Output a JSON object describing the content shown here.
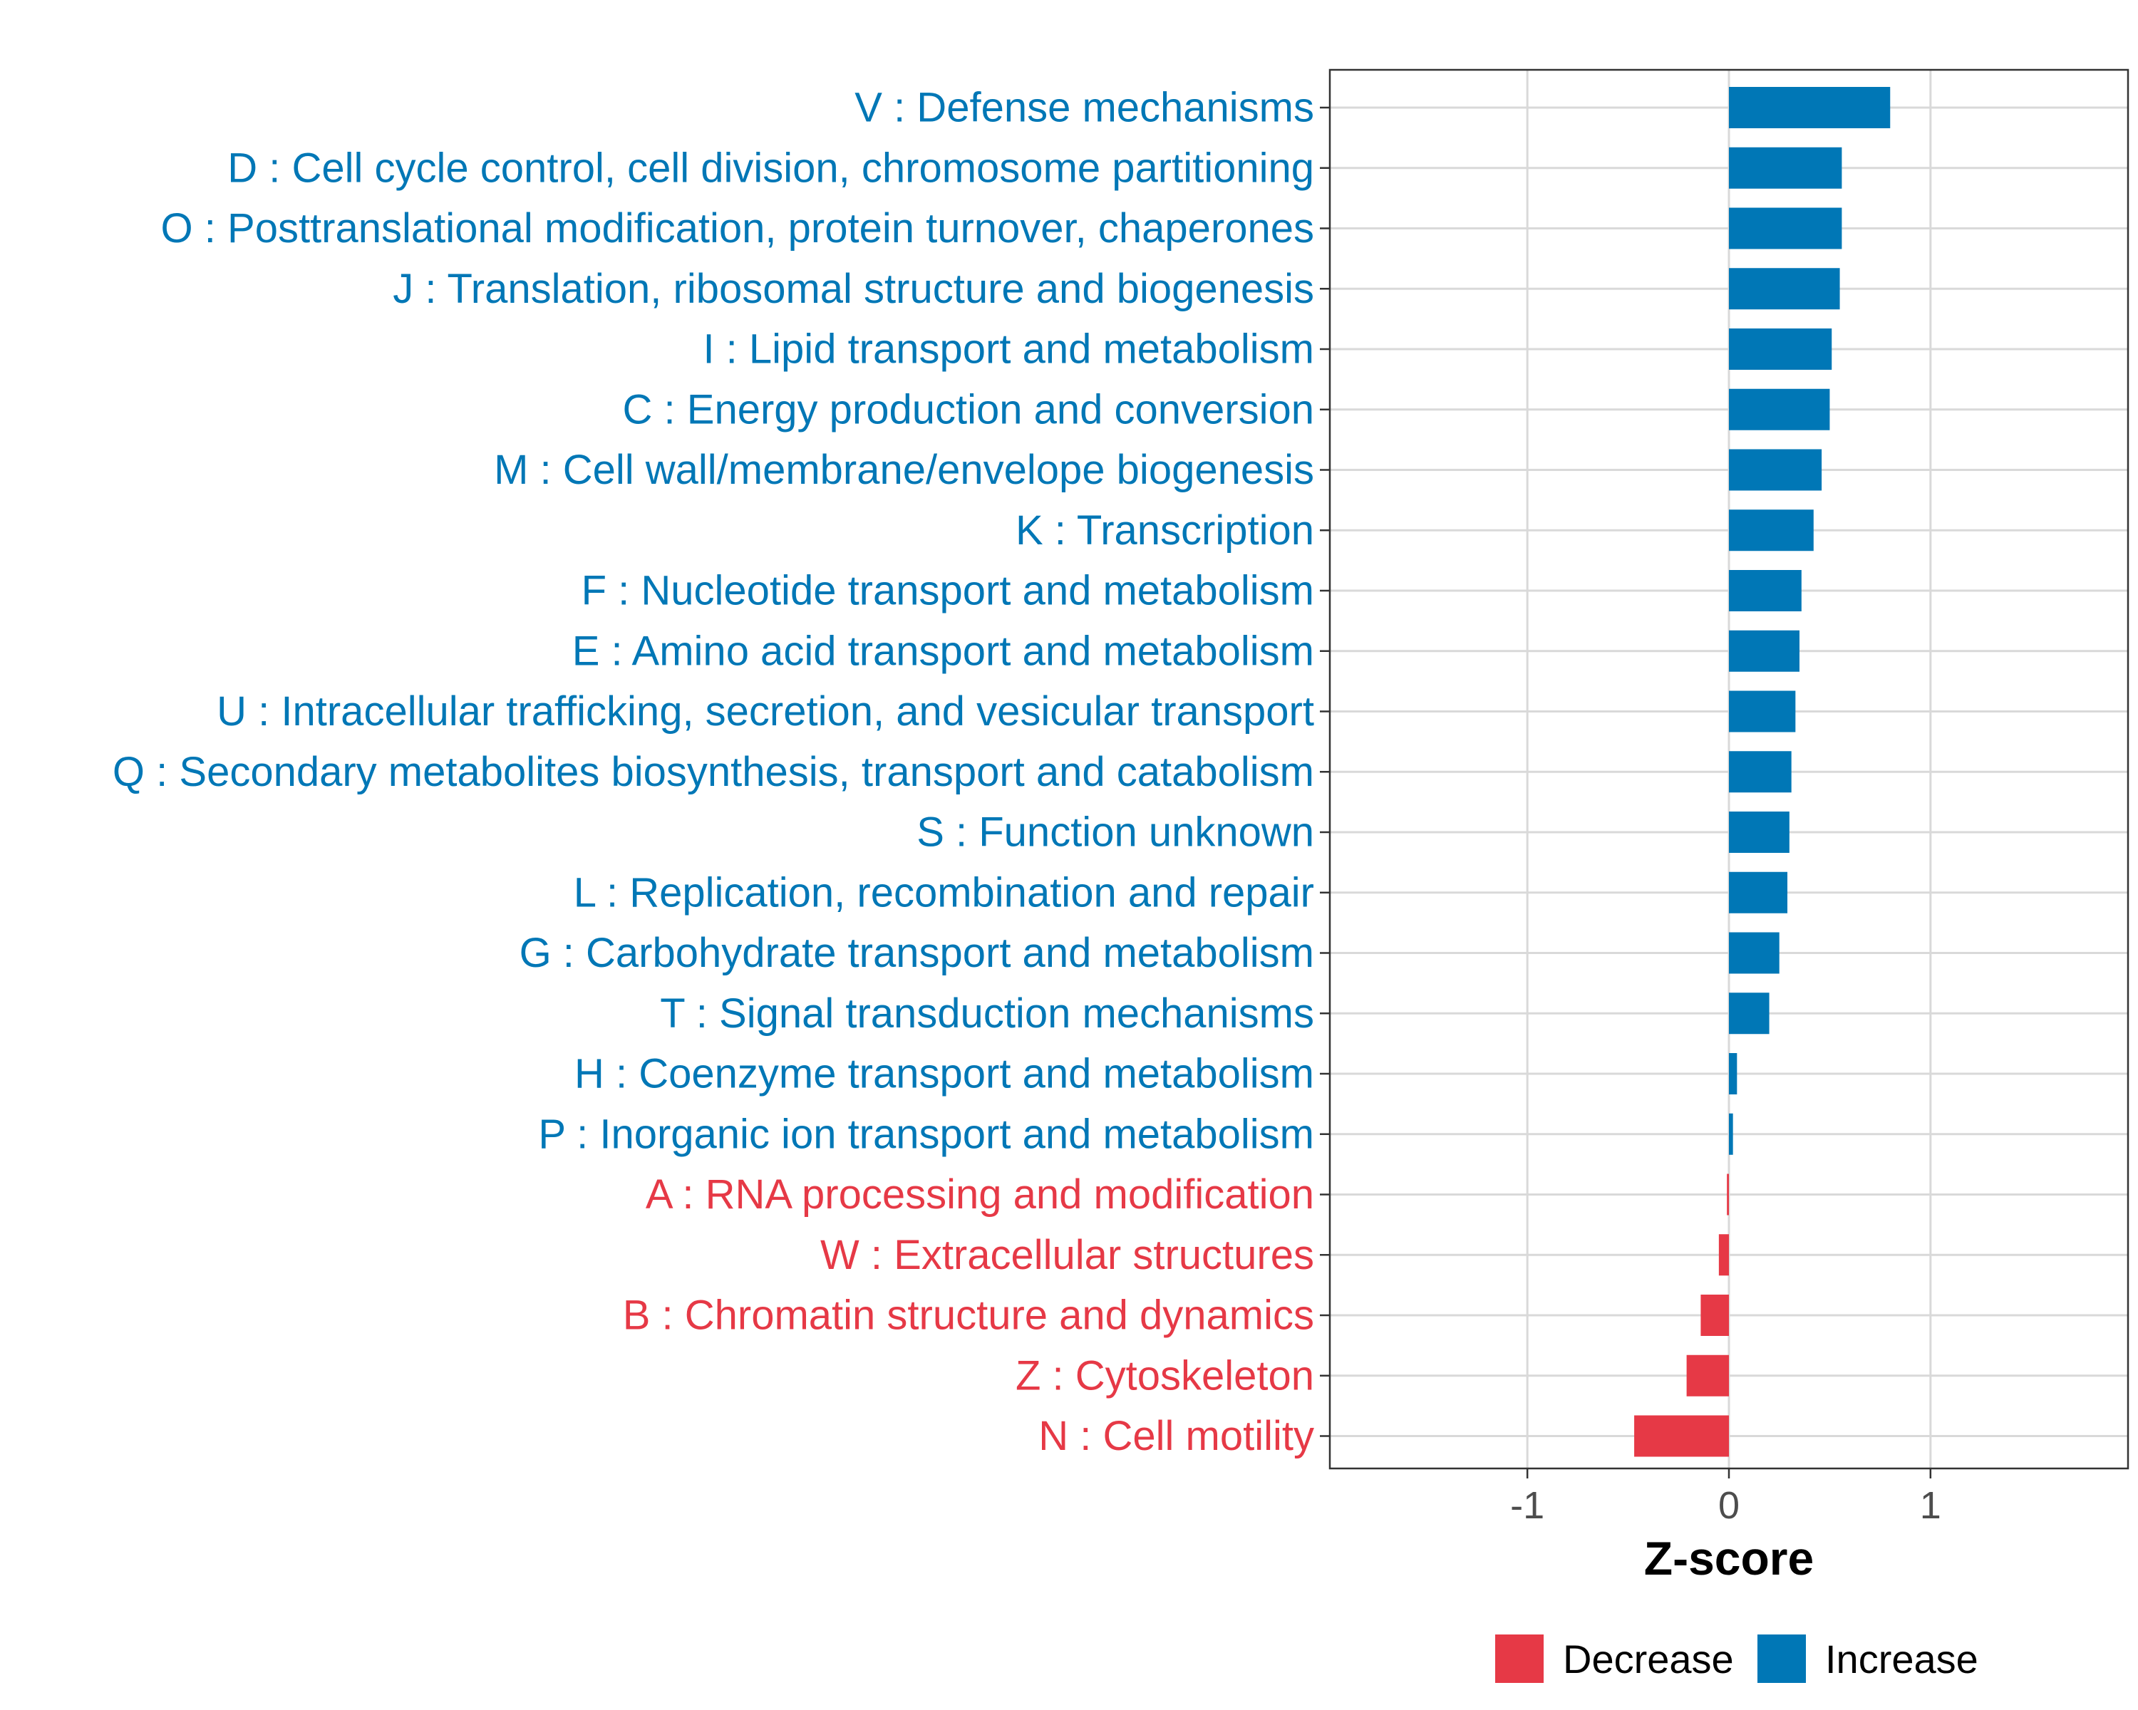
{
  "chart_data": {
    "type": "bar",
    "orientation": "horizontal",
    "title": "",
    "xlabel": "Z-score",
    "ylabel": "",
    "xlim": [
      -1.98,
      1.98
    ],
    "xticks": [
      -1,
      0,
      1
    ],
    "xtick_labels": [
      "-1",
      "0",
      "1"
    ],
    "grid": true,
    "legend_position": "bottom",
    "colors": {
      "Decrease": "#E63946",
      "Increase": "#0077B6"
    },
    "legend": [
      {
        "label": "Decrease",
        "color": "#E63946"
      },
      {
        "label": "Increase",
        "color": "#0077B6"
      }
    ],
    "categories": [
      "V : Defense mechanisms",
      "D : Cell cycle control, cell division, chromosome partitioning",
      "O : Posttranslational modification, protein turnover, chaperones",
      "J : Translation, ribosomal structure and biogenesis",
      "I : Lipid transport and metabolism",
      "C : Energy production and conversion",
      "M : Cell wall/membrane/envelope biogenesis",
      "K : Transcription",
      "F : Nucleotide transport and metabolism",
      "E : Amino acid transport and metabolism",
      "U : Intracellular trafficking, secretion, and vesicular transport",
      "Q : Secondary metabolites biosynthesis, transport and catabolism",
      "S : Function unknown",
      "L : Replication, recombination and repair",
      "G : Carbohydrate transport and metabolism",
      "T : Signal transduction mechanisms",
      "H : Coenzyme transport and metabolism",
      "P : Inorganic ion transport and metabolism",
      "A : RNA processing and modification",
      "W : Extracellular structures",
      "B : Chromatin structure and dynamics",
      "Z : Cytoskeleton",
      "N : Cell motility"
    ],
    "values": [
      0.8,
      0.56,
      0.56,
      0.55,
      0.51,
      0.5,
      0.46,
      0.42,
      0.36,
      0.35,
      0.33,
      0.31,
      0.3,
      0.29,
      0.25,
      0.2,
      0.04,
      0.02,
      -0.01,
      -0.05,
      -0.14,
      -0.21,
      -0.47
    ],
    "groups": [
      "Increase",
      "Increase",
      "Increase",
      "Increase",
      "Increase",
      "Increase",
      "Increase",
      "Increase",
      "Increase",
      "Increase",
      "Increase",
      "Increase",
      "Increase",
      "Increase",
      "Increase",
      "Increase",
      "Increase",
      "Increase",
      "Decrease",
      "Decrease",
      "Decrease",
      "Decrease",
      "Decrease"
    ]
  }
}
